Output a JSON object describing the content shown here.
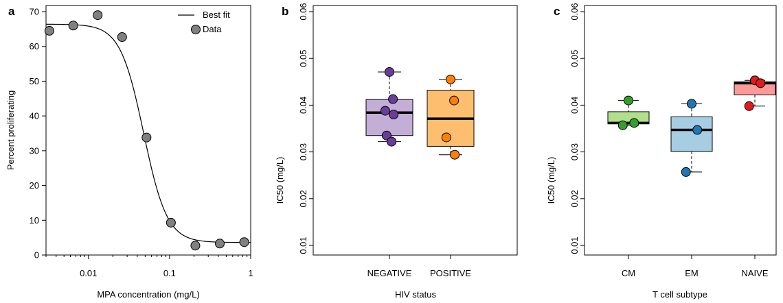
{
  "chart_data": [
    {
      "panel": "a",
      "type": "scatter",
      "xscale": "log",
      "xlabel": "MPA concentration (mg/L)",
      "ylabel": "Percent proliferating",
      "xlim": [
        0.003,
        1
      ],
      "ylim": [
        0,
        70
      ],
      "xticks": [
        0.01,
        0.1,
        1
      ],
      "xtick_labels": [
        "0.01",
        "0.1",
        "1"
      ],
      "yticks": [
        0,
        10,
        20,
        30,
        40,
        50,
        60,
        70
      ],
      "points": [
        {
          "x": 0.0033,
          "y": 64.5
        },
        {
          "x": 0.0065,
          "y": 66.0
        },
        {
          "x": 0.013,
          "y": 69.0
        },
        {
          "x": 0.026,
          "y": 62.7
        },
        {
          "x": 0.052,
          "y": 33.8
        },
        {
          "x": 0.104,
          "y": 9.3
        },
        {
          "x": 0.208,
          "y": 2.7
        },
        {
          "x": 0.416,
          "y": 3.3
        },
        {
          "x": 0.832,
          "y": 3.7
        }
      ],
      "fit": {
        "top": 66.4,
        "bottom": 3.6,
        "ic50": 0.048,
        "hill": 3.0
      },
      "legend": {
        "position": "top-right",
        "fit_label": "Best fit",
        "data_label": "Data"
      },
      "grid": false
    },
    {
      "panel": "b",
      "type": "box",
      "xlabel": "HIV status",
      "ylabel": "IC50 (mg/L)",
      "ylim": [
        0.005,
        0.0615
      ],
      "yticks": [
        0.01,
        0.02,
        0.03,
        0.04,
        0.05,
        0.06
      ],
      "ytick_labels": [
        "0.01",
        "0.02",
        "0.03",
        "0.04",
        "0.05",
        "0.06"
      ],
      "groups": [
        {
          "name": "NEGATIVE",
          "fill": "#c3aed6",
          "point_color": "#6a3d9a",
          "whisker_low": 0.0322,
          "q1": 0.0335,
          "median": 0.0384,
          "q3": 0.0412,
          "whisker_high": 0.0471,
          "points": [
            0.0471,
            0.0413,
            0.0388,
            0.038,
            0.0335,
            0.0322
          ]
        },
        {
          "name": "POSITIVE",
          "fill": "#fdbf6f",
          "point_color": "#ff7f00",
          "whisker_low": 0.0294,
          "q1": 0.0312,
          "median": 0.0371,
          "q3": 0.0432,
          "whisker_high": 0.0455,
          "points": [
            0.0455,
            0.041,
            0.0331,
            0.0294
          ]
        }
      ],
      "grid": false
    },
    {
      "panel": "c",
      "type": "box",
      "xlabel": "T cell subtype",
      "ylabel": "IC50 (mg/L)",
      "ylim": [
        0.005,
        0.0615
      ],
      "yticks": [
        0.01,
        0.02,
        0.03,
        0.04,
        0.05,
        0.06
      ],
      "ytick_labels": [
        "0.01",
        "0.02",
        "0.03",
        "0.04",
        "0.05",
        "0.06"
      ],
      "groups": [
        {
          "name": "CM",
          "fill": "#b2df8a",
          "point_color": "#33a02c",
          "whisker_low": 0.0357,
          "q1": 0.036,
          "median": 0.0362,
          "q3": 0.0386,
          "whisker_high": 0.041,
          "points": [
            0.041,
            0.0362,
            0.0357
          ]
        },
        {
          "name": "EM",
          "fill": "#a6cee3",
          "point_color": "#1f78b4",
          "whisker_low": 0.0257,
          "q1": 0.0301,
          "median": 0.0347,
          "q3": 0.0375,
          "whisker_high": 0.0403,
          "points": [
            0.0403,
            0.0347,
            0.0257
          ]
        },
        {
          "name": "NAIVE",
          "fill": "#fb9a99",
          "point_color": "#e31a1c",
          "whisker_low": 0.0398,
          "q1": 0.0422,
          "median": 0.0447,
          "q3": 0.045,
          "whisker_high": 0.0453,
          "points": [
            0.0453,
            0.0447,
            0.0398
          ]
        }
      ],
      "grid": false
    }
  ]
}
